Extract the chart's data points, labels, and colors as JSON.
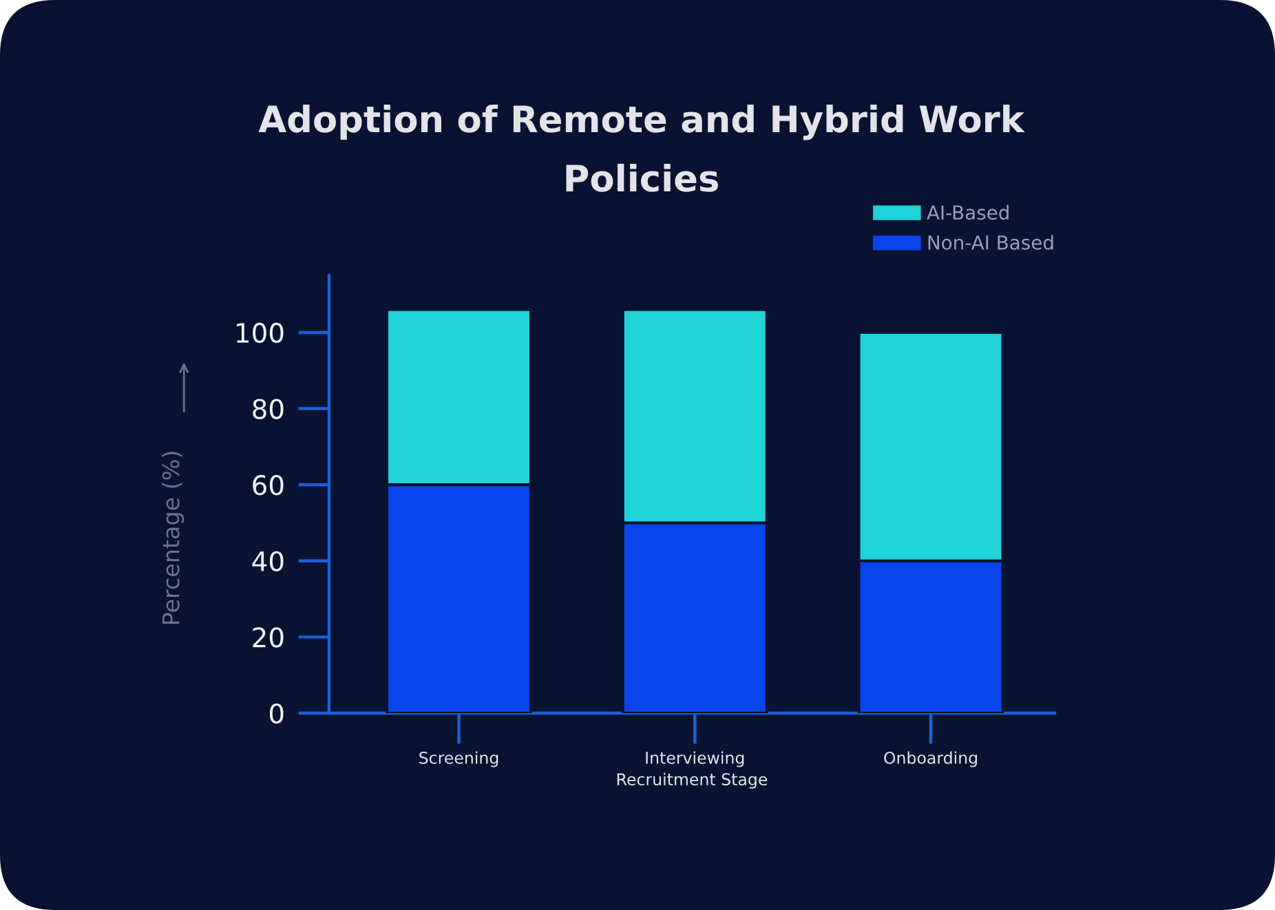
{
  "chart_data": {
    "type": "bar",
    "title": "Adoption of Remote and Hybrid Work\nPolicies",
    "xlabel": "Recruitment Stage",
    "ylabel": "Percentage (%)",
    "categories": [
      "Screening",
      "Interviewing",
      "Onboarding"
    ],
    "stacked": true,
    "series": [
      {
        "name": "Non-AI Based",
        "color": "#0a44ec",
        "values": [
          60,
          50,
          40
        ]
      },
      {
        "name": "AI-Based",
        "color": "#1fd3d8",
        "values": [
          46,
          56,
          60
        ]
      }
    ],
    "ylim": [
      0,
      115
    ],
    "yticks": [
      0,
      20,
      40,
      60,
      80,
      100
    ],
    "grid": false,
    "legend": "top right"
  }
}
